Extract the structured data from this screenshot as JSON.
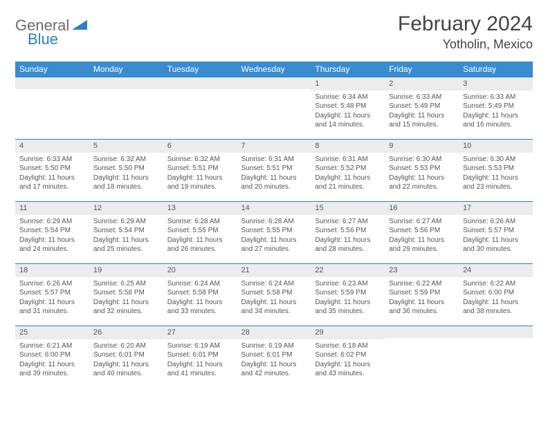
{
  "brand": {
    "part1": "General",
    "part2": "Blue"
  },
  "title": "February 2024",
  "location": "Yotholin, Mexico",
  "colors": {
    "header_bg": "#3a8cd0",
    "header_text": "#ffffff",
    "daynum_bg": "#ececec",
    "row_border": "#2b7fc5",
    "body_text": "#555555",
    "logo_gray": "#6b6b6b",
    "logo_blue": "#2b7fc5"
  },
  "weekdays": [
    "Sunday",
    "Monday",
    "Tuesday",
    "Wednesday",
    "Thursday",
    "Friday",
    "Saturday"
  ],
  "weeks": [
    [
      {
        "n": "",
        "sr": "",
        "ss": "",
        "dl": ""
      },
      {
        "n": "",
        "sr": "",
        "ss": "",
        "dl": ""
      },
      {
        "n": "",
        "sr": "",
        "ss": "",
        "dl": ""
      },
      {
        "n": "",
        "sr": "",
        "ss": "",
        "dl": ""
      },
      {
        "n": "1",
        "sr": "Sunrise: 6:34 AM",
        "ss": "Sunset: 5:48 PM",
        "dl": "Daylight: 11 hours and 14 minutes."
      },
      {
        "n": "2",
        "sr": "Sunrise: 6:33 AM",
        "ss": "Sunset: 5:49 PM",
        "dl": "Daylight: 11 hours and 15 minutes."
      },
      {
        "n": "3",
        "sr": "Sunrise: 6:33 AM",
        "ss": "Sunset: 5:49 PM",
        "dl": "Daylight: 11 hours and 16 minutes."
      }
    ],
    [
      {
        "n": "4",
        "sr": "Sunrise: 6:33 AM",
        "ss": "Sunset: 5:50 PM",
        "dl": "Daylight: 11 hours and 17 minutes."
      },
      {
        "n": "5",
        "sr": "Sunrise: 6:32 AM",
        "ss": "Sunset: 5:50 PM",
        "dl": "Daylight: 11 hours and 18 minutes."
      },
      {
        "n": "6",
        "sr": "Sunrise: 6:32 AM",
        "ss": "Sunset: 5:51 PM",
        "dl": "Daylight: 11 hours and 19 minutes."
      },
      {
        "n": "7",
        "sr": "Sunrise: 6:31 AM",
        "ss": "Sunset: 5:51 PM",
        "dl": "Daylight: 11 hours and 20 minutes."
      },
      {
        "n": "8",
        "sr": "Sunrise: 6:31 AM",
        "ss": "Sunset: 5:52 PM",
        "dl": "Daylight: 11 hours and 21 minutes."
      },
      {
        "n": "9",
        "sr": "Sunrise: 6:30 AM",
        "ss": "Sunset: 5:53 PM",
        "dl": "Daylight: 11 hours and 22 minutes."
      },
      {
        "n": "10",
        "sr": "Sunrise: 6:30 AM",
        "ss": "Sunset: 5:53 PM",
        "dl": "Daylight: 11 hours and 23 minutes."
      }
    ],
    [
      {
        "n": "11",
        "sr": "Sunrise: 6:29 AM",
        "ss": "Sunset: 5:54 PM",
        "dl": "Daylight: 11 hours and 24 minutes."
      },
      {
        "n": "12",
        "sr": "Sunrise: 6:29 AM",
        "ss": "Sunset: 5:54 PM",
        "dl": "Daylight: 11 hours and 25 minutes."
      },
      {
        "n": "13",
        "sr": "Sunrise: 6:28 AM",
        "ss": "Sunset: 5:55 PM",
        "dl": "Daylight: 11 hours and 26 minutes."
      },
      {
        "n": "14",
        "sr": "Sunrise: 6:28 AM",
        "ss": "Sunset: 5:55 PM",
        "dl": "Daylight: 11 hours and 27 minutes."
      },
      {
        "n": "15",
        "sr": "Sunrise: 6:27 AM",
        "ss": "Sunset: 5:56 PM",
        "dl": "Daylight: 11 hours and 28 minutes."
      },
      {
        "n": "16",
        "sr": "Sunrise: 6:27 AM",
        "ss": "Sunset: 5:56 PM",
        "dl": "Daylight: 11 hours and 29 minutes."
      },
      {
        "n": "17",
        "sr": "Sunrise: 6:26 AM",
        "ss": "Sunset: 5:57 PM",
        "dl": "Daylight: 11 hours and 30 minutes."
      }
    ],
    [
      {
        "n": "18",
        "sr": "Sunrise: 6:26 AM",
        "ss": "Sunset: 5:57 PM",
        "dl": "Daylight: 11 hours and 31 minutes."
      },
      {
        "n": "19",
        "sr": "Sunrise: 6:25 AM",
        "ss": "Sunset: 5:58 PM",
        "dl": "Daylight: 11 hours and 32 minutes."
      },
      {
        "n": "20",
        "sr": "Sunrise: 6:24 AM",
        "ss": "Sunset: 5:58 PM",
        "dl": "Daylight: 11 hours and 33 minutes."
      },
      {
        "n": "21",
        "sr": "Sunrise: 6:24 AM",
        "ss": "Sunset: 5:58 PM",
        "dl": "Daylight: 11 hours and 34 minutes."
      },
      {
        "n": "22",
        "sr": "Sunrise: 6:23 AM",
        "ss": "Sunset: 5:59 PM",
        "dl": "Daylight: 11 hours and 35 minutes."
      },
      {
        "n": "23",
        "sr": "Sunrise: 6:22 AM",
        "ss": "Sunset: 5:59 PM",
        "dl": "Daylight: 11 hours and 36 minutes."
      },
      {
        "n": "24",
        "sr": "Sunrise: 6:22 AM",
        "ss": "Sunset: 6:00 PM",
        "dl": "Daylight: 11 hours and 38 minutes."
      }
    ],
    [
      {
        "n": "25",
        "sr": "Sunrise: 6:21 AM",
        "ss": "Sunset: 6:00 PM",
        "dl": "Daylight: 11 hours and 39 minutes."
      },
      {
        "n": "26",
        "sr": "Sunrise: 6:20 AM",
        "ss": "Sunset: 6:01 PM",
        "dl": "Daylight: 11 hours and 40 minutes."
      },
      {
        "n": "27",
        "sr": "Sunrise: 6:19 AM",
        "ss": "Sunset: 6:01 PM",
        "dl": "Daylight: 11 hours and 41 minutes."
      },
      {
        "n": "28",
        "sr": "Sunrise: 6:19 AM",
        "ss": "Sunset: 6:01 PM",
        "dl": "Daylight: 11 hours and 42 minutes."
      },
      {
        "n": "29",
        "sr": "Sunrise: 6:18 AM",
        "ss": "Sunset: 6:02 PM",
        "dl": "Daylight: 11 hours and 43 minutes."
      },
      {
        "n": "",
        "sr": "",
        "ss": "",
        "dl": ""
      },
      {
        "n": "",
        "sr": "",
        "ss": "",
        "dl": ""
      }
    ]
  ]
}
